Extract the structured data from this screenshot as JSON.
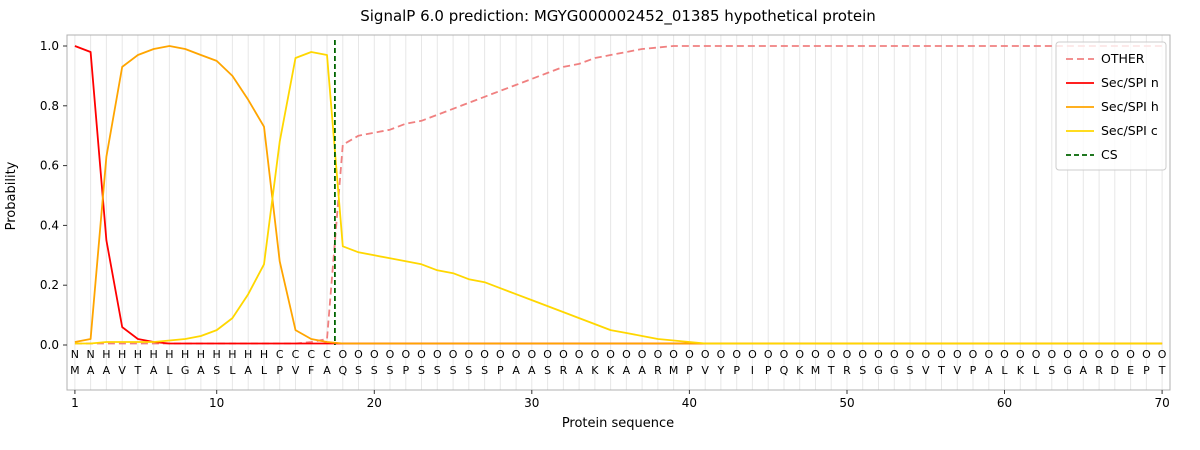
{
  "chart_data": {
    "type": "line",
    "title": "SignalP 6.0 prediction: MGYG000002452_01385 hypothetical protein",
    "xlabel": "Protein sequence",
    "ylabel": "Probability",
    "xlim": [
      0.5,
      70.5
    ],
    "ylim": [
      -0.15,
      1.04
    ],
    "xticks": [
      1,
      10,
      20,
      30,
      40,
      50,
      60,
      70
    ],
    "yticks": [
      0.0,
      0.2,
      0.4,
      0.6,
      0.8,
      1.0
    ],
    "grid": "vertical-per-residue",
    "grid_color": "#e7e7e7",
    "spine_color": "#b0b0b0",
    "legend_position": "upper right",
    "x": [
      1,
      2,
      3,
      4,
      5,
      6,
      7,
      8,
      9,
      10,
      11,
      12,
      13,
      14,
      15,
      16,
      17,
      18,
      19,
      20,
      21,
      22,
      23,
      24,
      25,
      26,
      27,
      28,
      29,
      30,
      31,
      32,
      33,
      34,
      35,
      36,
      37,
      38,
      39,
      40,
      41,
      42,
      43,
      44,
      45,
      46,
      47,
      48,
      49,
      50,
      51,
      52,
      53,
      54,
      55,
      56,
      57,
      58,
      59,
      60,
      61,
      62,
      63,
      64,
      65,
      66,
      67,
      68,
      69,
      70
    ],
    "series": [
      {
        "name": "OTHER",
        "color": "#f08080",
        "dash": "7 4",
        "values": [
          0.005,
          0.005,
          0.005,
          0.005,
          0.005,
          0.005,
          0.005,
          0.005,
          0.005,
          0.005,
          0.005,
          0.005,
          0.005,
          0.005,
          0.005,
          0.01,
          0.02,
          0.67,
          0.7,
          0.71,
          0.72,
          0.74,
          0.75,
          0.77,
          0.79,
          0.81,
          0.83,
          0.85,
          0.87,
          0.89,
          0.91,
          0.93,
          0.94,
          0.96,
          0.97,
          0.98,
          0.99,
          0.995,
          1,
          1,
          1,
          1,
          1,
          1,
          1,
          1,
          1,
          1,
          1,
          1,
          1,
          1,
          1,
          1,
          1,
          1,
          1,
          1,
          1,
          1,
          1,
          1,
          1,
          1,
          1,
          1,
          1,
          1,
          1,
          1
        ]
      },
      {
        "name": "Sec/SPI n",
        "color": "#ff0000",
        "dash": null,
        "values": [
          1,
          0.98,
          0.35,
          0.06,
          0.02,
          0.01,
          0.005,
          0.005,
          0.005,
          0.005,
          0.005,
          0.005,
          0.005,
          0.005,
          0.005,
          0.005,
          0.005,
          0.005,
          0.005,
          0.005,
          0.005,
          0.005,
          0.005,
          0.005,
          0.005,
          0.005,
          0.005,
          0.005,
          0.005,
          0.005,
          0.005,
          0.005,
          0.005,
          0.005,
          0.005,
          0.005,
          0.005,
          0.005,
          0.005,
          0.005,
          0.005,
          0.005,
          0.005,
          0.005,
          0.005,
          0.005,
          0.005,
          0.005,
          0.005,
          0.005,
          0.005,
          0.005,
          0.005,
          0.005,
          0.005,
          0.005,
          0.005,
          0.005,
          0.005,
          0.005,
          0.005,
          0.005,
          0.005,
          0.005,
          0.005,
          0.005,
          0.005,
          0.005,
          0.005,
          0.005
        ]
      },
      {
        "name": "Sec/SPI h",
        "color": "#ffa500",
        "dash": null,
        "values": [
          0.01,
          0.02,
          0.63,
          0.93,
          0.97,
          0.99,
          1,
          0.99,
          0.97,
          0.95,
          0.9,
          0.82,
          0.73,
          0.28,
          0.05,
          0.02,
          0.01,
          0.005,
          0.005,
          0.005,
          0.005,
          0.005,
          0.005,
          0.005,
          0.005,
          0.005,
          0.005,
          0.005,
          0.005,
          0.005,
          0.005,
          0.005,
          0.005,
          0.005,
          0.005,
          0.005,
          0.005,
          0.005,
          0.005,
          0.005,
          0.005,
          0.005,
          0.005,
          0.005,
          0.005,
          0.005,
          0.005,
          0.005,
          0.005,
          0.005,
          0.005,
          0.005,
          0.005,
          0.005,
          0.005,
          0.005,
          0.005,
          0.005,
          0.005,
          0.005,
          0.005,
          0.005,
          0.005,
          0.005,
          0.005,
          0.005,
          0.005,
          0.005,
          0.005,
          0.005
        ]
      },
      {
        "name": "Sec/SPI c",
        "color": "#ffd700",
        "dash": null,
        "values": [
          0.005,
          0.005,
          0.01,
          0.01,
          0.01,
          0.01,
          0.015,
          0.02,
          0.03,
          0.05,
          0.09,
          0.17,
          0.27,
          0.68,
          0.96,
          0.98,
          0.97,
          0.33,
          0.31,
          0.3,
          0.29,
          0.28,
          0.27,
          0.25,
          0.24,
          0.22,
          0.21,
          0.19,
          0.17,
          0.15,
          0.13,
          0.11,
          0.09,
          0.07,
          0.05,
          0.04,
          0.03,
          0.02,
          0.015,
          0.01,
          0.005,
          0.005,
          0.005,
          0.005,
          0.005,
          0.005,
          0.005,
          0.005,
          0.005,
          0.005,
          0.005,
          0.005,
          0.005,
          0.005,
          0.005,
          0.005,
          0.005,
          0.005,
          0.005,
          0.005,
          0.005,
          0.005,
          0.005,
          0.005,
          0.005,
          0.005,
          0.005,
          0.005,
          0.005,
          0.005
        ]
      }
    ],
    "cs_line": {
      "name": "CS",
      "position": 17.5,
      "color": "#006400",
      "dash": "5 3"
    },
    "sequence": "MAAVTALGASLALPVFAQSSSPSSSSSPAASRAKKAARMPVYPIPQKMTRSGGSVTVPALKLSGARDEPT",
    "residue_labels": "NNHHHHHHHHHHHCCCCOOOOOOOOOOOOOOOOOOOOOOOOOOOOOOOOOOOOOOOOOOOOOOOOOOOOO",
    "label_colors": {
      "N": "#ff0000",
      "H": "#ffa500",
      "C": "#ffd700",
      "O": "#8c8c8c"
    }
  }
}
